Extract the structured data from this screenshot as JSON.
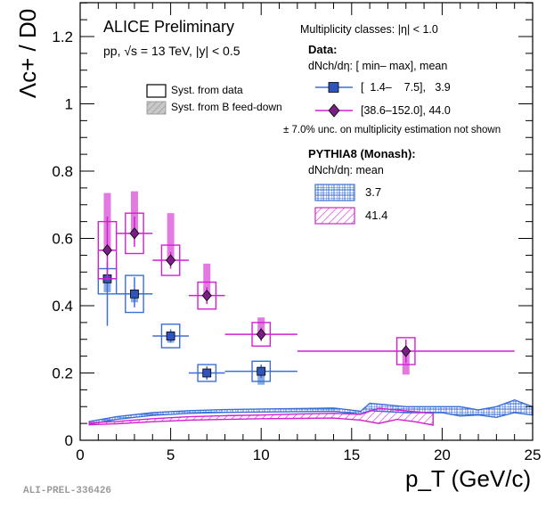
{
  "chart_data": {
    "type": "scatter",
    "title": "ALICE Preliminary",
    "subtitle": "pp, √s = 13 TeV, |y| < 0.5",
    "xlabel": "p_T (GeV/c)",
    "ylabel": "Λc+ / D0",
    "xlim": [
      0,
      25
    ],
    "ylim": [
      0,
      1.3
    ],
    "x_ticks": [
      0,
      5,
      10,
      15,
      20,
      25
    ],
    "y_ticks": [
      0,
      0.2,
      0.4,
      0.6,
      0.8,
      1,
      1.2
    ],
    "x_tick_labels": [
      "0",
      "5",
      "10",
      "15",
      "20",
      "25"
    ],
    "y_tick_labels": [
      "0",
      "0.2",
      "0.4",
      "0.6",
      "0.8",
      "1",
      "1.2"
    ],
    "watermark": "ALI-PREL-336426",
    "legend": {
      "syst_data": "Syst. from data",
      "syst_bfeed": "Syst. from B feed-down",
      "mult_header": "Multiplicity classes: |η| < 1.0",
      "data_header": "Data:",
      "data_cols": "dNch/dη: [ min–   max], mean",
      "data_entries": [
        "[  1.4–    7.5],   3.9",
        "[38.6–152.0], 44.0"
      ],
      "unc_note": "± 7.0% unc. on multiplicity estimation not shown",
      "pythia_header": "PYTHIA8 (Monash):",
      "pythia_cols": "dNch/dη: mean",
      "pythia_entries": [
        "3.7",
        "41.4"
      ]
    },
    "series": [
      {
        "name": "Data dNch/dη mean 3.9",
        "color": "#3b6fd6",
        "fill": "#2f55b8",
        "marker": "square",
        "points": [
          {
            "x": 1.5,
            "y": 0.48,
            "xlo": 1,
            "xhi": 2,
            "stat": [
              0.14,
              0.05
            ],
            "syst": [
              0.045,
              0.03
            ],
            "bfd": [
              0.04,
              0.0
            ]
          },
          {
            "x": 3,
            "y": 0.435,
            "xlo": 2,
            "xhi": 4,
            "stat": [
              0.04,
              0.05
            ],
            "syst": [
              0.055,
              0.055
            ],
            "bfd": [
              0.025,
              0.0
            ]
          },
          {
            "x": 5,
            "y": 0.31,
            "xlo": 4,
            "xhi": 6,
            "stat": [
              0.02,
              0.02
            ],
            "syst": [
              0.035,
              0.035
            ],
            "bfd": [
              0.02,
              0.0
            ]
          },
          {
            "x": 7,
            "y": 0.2,
            "xlo": 6,
            "xhi": 8,
            "stat": [
              0.02,
              0.02
            ],
            "syst": [
              0.025,
              0.025
            ],
            "bfd": [
              0.01,
              0.0
            ]
          },
          {
            "x": 10,
            "y": 0.205,
            "xlo": 8,
            "xhi": 12,
            "stat": [
              0.02,
              0.02
            ],
            "syst": [
              0.03,
              0.03
            ],
            "bfd": [
              0.04,
              0.0
            ]
          }
        ]
      },
      {
        "name": "Data dNch/dη mean 44.0",
        "color": "#d121cf",
        "fill": "#7a1e86",
        "marker": "diamond",
        "points": [
          {
            "x": 1.5,
            "y": 0.565,
            "xlo": 1,
            "xhi": 2,
            "stat": [
              0.09,
              0.1
            ],
            "syst": [
              0.085,
              0.085
            ],
            "bfd": [
              0.0,
              0.17
            ]
          },
          {
            "x": 3,
            "y": 0.615,
            "xlo": 2,
            "xhi": 4,
            "stat": [
              0.04,
              0.05
            ],
            "syst": [
              0.06,
              0.06
            ],
            "bfd": [
              0.0,
              0.125
            ]
          },
          {
            "x": 5,
            "y": 0.535,
            "xlo": 4,
            "xhi": 6,
            "stat": [
              0.025,
              0.025
            ],
            "syst": [
              0.045,
              0.045
            ],
            "bfd": [
              0.0,
              0.14
            ]
          },
          {
            "x": 7,
            "y": 0.43,
            "xlo": 6,
            "xhi": 8,
            "stat": [
              0.025,
              0.025
            ],
            "syst": [
              0.04,
              0.04
            ],
            "bfd": [
              0.0,
              0.095
            ]
          },
          {
            "x": 10,
            "y": 0.315,
            "xlo": 8,
            "xhi": 12,
            "stat": [
              0.02,
              0.02
            ],
            "syst": [
              0.035,
              0.035
            ],
            "bfd": [
              0.0,
              0.05
            ]
          },
          {
            "x": 18,
            "y": 0.265,
            "xlo": 12,
            "xhi": 24,
            "stat": [
              0.035,
              0.035
            ],
            "syst": [
              0.04,
              0.04
            ],
            "bfd": [
              0.07,
              0.0
            ]
          }
        ]
      }
    ],
    "pythia": [
      {
        "name": "PYTHIA8 mean 3.7",
        "color": "#3b6fd6",
        "x": [
          0.5,
          2,
          4,
          6,
          8,
          10,
          12,
          14,
          15.5,
          16,
          18,
          20,
          21,
          22,
          23,
          24,
          25
        ],
        "lower": [
          0.048,
          0.062,
          0.074,
          0.08,
          0.083,
          0.084,
          0.085,
          0.086,
          0.078,
          0.088,
          0.082,
          0.082,
          0.072,
          0.075,
          0.068,
          0.082,
          0.075
        ],
        "upper": [
          0.056,
          0.07,
          0.082,
          0.088,
          0.091,
          0.093,
          0.094,
          0.096,
          0.086,
          0.11,
          0.1,
          0.1,
          0.1,
          0.09,
          0.1,
          0.12,
          0.1
        ]
      },
      {
        "name": "PYTHIA8 mean 41.4",
        "color": "#d121cf",
        "x": [
          0.5,
          2,
          4,
          6,
          8,
          10,
          12,
          14,
          15.5,
          16.5,
          17.5,
          18.5,
          19.5
        ],
        "lower": [
          0.046,
          0.049,
          0.055,
          0.06,
          0.062,
          0.064,
          0.065,
          0.066,
          0.06,
          0.05,
          0.062,
          0.055,
          0.045
        ],
        "upper": [
          0.052,
          0.056,
          0.064,
          0.07,
          0.073,
          0.075,
          0.078,
          0.08,
          0.077,
          0.095,
          0.09,
          0.085,
          0.08
        ]
      }
    ]
  }
}
